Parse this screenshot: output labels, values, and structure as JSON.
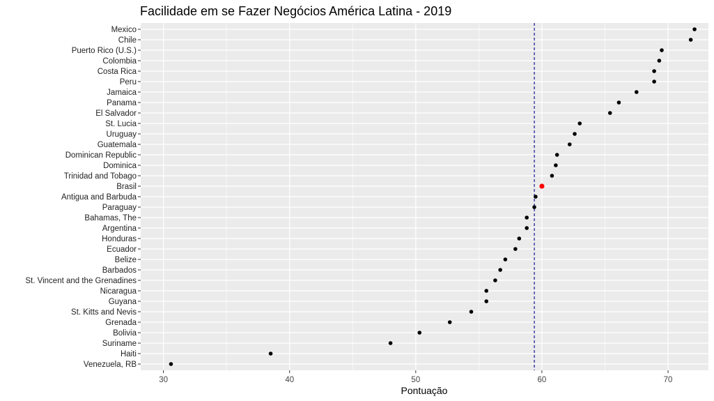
{
  "chart_data": {
    "type": "scatter",
    "title": "Facilidade em se Fazer Negócios América Latina - 2019",
    "xlabel": "Pontuação",
    "ylabel": "",
    "xlim": [
      28.2,
      73.2
    ],
    "x_ticks": [
      30,
      40,
      50,
      60,
      70
    ],
    "grid": true,
    "panel_background": "#ebebeb",
    "grid_color": "#ffffff",
    "point_color": "#000000",
    "highlight_color": "#ff0000",
    "reference_line": {
      "x": 59.4,
      "style": "dashed",
      "color": "#00008b"
    },
    "categories": [
      "Mexico",
      "Chile",
      "Puerto Rico (U.S.)",
      "Colombia",
      "Costa Rica",
      "Peru",
      "Jamaica",
      "Panama",
      "El Salvador",
      "St. Lucia",
      "Uruguay",
      "Guatemala",
      "Dominican Republic",
      "Dominica",
      "Trinidad and Tobago",
      "Brasil",
      "Antigua and Barbuda",
      "Paraguay",
      "Bahamas, The",
      "Argentina",
      "Honduras",
      "Ecuador",
      "Belize",
      "Barbados",
      "St. Vincent and the Grenadines",
      "Nicaragua",
      "Guyana",
      "St. Kitts and Nevis",
      "Grenada",
      "Bolivia",
      "Suriname",
      "Haiti",
      "Venezuela, RB"
    ],
    "values": [
      72.1,
      71.8,
      69.5,
      69.3,
      68.9,
      68.9,
      67.5,
      66.1,
      65.4,
      63.0,
      62.6,
      62.2,
      61.2,
      61.1,
      60.8,
      60.0,
      59.5,
      59.4,
      58.8,
      58.8,
      58.2,
      57.9,
      57.1,
      56.7,
      56.3,
      55.6,
      55.6,
      54.4,
      52.7,
      50.3,
      48.0,
      38.5,
      30.6
    ],
    "highlight": "Brasil"
  }
}
